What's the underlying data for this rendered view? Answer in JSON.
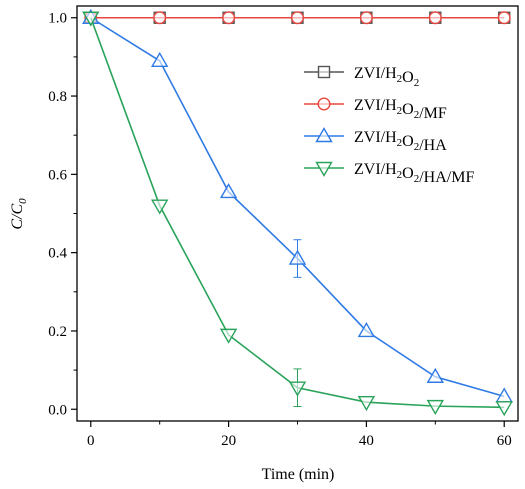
{
  "chart_data": {
    "type": "line",
    "xlabel": "Time (min)",
    "ylabel": "C/C0",
    "xlim": [
      -2,
      62
    ],
    "ylim": [
      -0.03,
      1.03
    ],
    "xticks": [
      "0",
      "20",
      "40",
      "60"
    ],
    "xtick_values": [
      0,
      20,
      40,
      60
    ],
    "yticks": [
      "0.0",
      "0.2",
      "0.4",
      "0.6",
      "0.8",
      "1.0"
    ],
    "ytick_values": [
      0.0,
      0.2,
      0.4,
      0.6,
      0.8,
      1.0
    ],
    "legend_position": "top-right",
    "x": [
      0,
      10,
      20,
      30,
      40,
      50,
      60
    ],
    "series": [
      {
        "name": "ZVI/H2O2",
        "color": "#555555",
        "marker": "square",
        "values": [
          1.0,
          1.0,
          1.0,
          1.0,
          1.0,
          1.0,
          1.0
        ],
        "error": [
          0,
          0,
          0,
          0,
          0,
          0,
          0
        ]
      },
      {
        "name": "ZVI/H2O2/MF",
        "color": "#e8473f",
        "marker": "circle",
        "values": [
          1.0,
          1.0,
          1.0,
          1.0,
          1.0,
          1.0,
          1.0
        ],
        "error": [
          0,
          0,
          0,
          0,
          0,
          0,
          0
        ]
      },
      {
        "name": "ZVI/H2O2/HA",
        "color": "#2f7ae5",
        "marker": "triangle-up",
        "values": [
          1.0,
          0.89,
          0.555,
          0.385,
          0.2,
          0.083,
          0.033
        ],
        "error": [
          0,
          0.005,
          0.008,
          0.048,
          0.005,
          0.008,
          0.012
        ]
      },
      {
        "name": "ZVI/H2O2/HA/MF",
        "color": "#29a35a",
        "marker": "triangle-down",
        "values": [
          1.0,
          0.52,
          0.19,
          0.055,
          0.018,
          0.008,
          0.005
        ],
        "error": [
          0,
          0.008,
          0.01,
          0.048,
          0.004,
          0.003,
          0.003
        ]
      }
    ]
  }
}
